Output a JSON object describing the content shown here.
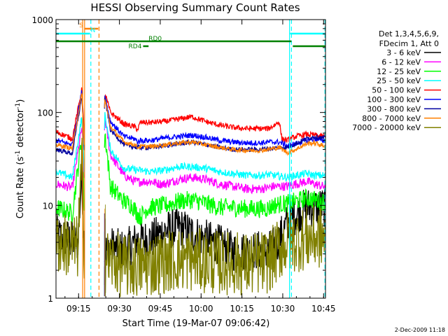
{
  "chart_data": {
    "type": "line",
    "title": "HESSI Observing Summary Count Rates",
    "xlabel": "Start Time (19-Mar-07 09:06:42)",
    "ylabel_main": "Count Rate (s",
    "ylabel_sup": "-1",
    "ylabel_mid": " detector",
    "ylabel_sup2": "-1",
    "ylabel_end": ")",
    "y_scale": "log",
    "xlim_minutes": [
      0,
      99
    ],
    "ylim": [
      1,
      1000
    ],
    "x_ticks": [
      {
        "t": 8.3,
        "label": "09:15"
      },
      {
        "t": 23.3,
        "label": "09:30"
      },
      {
        "t": 38.3,
        "label": "09:45"
      },
      {
        "t": 53.3,
        "label": "10:00"
      },
      {
        "t": 68.3,
        "label": "10:15"
      },
      {
        "t": 83.3,
        "label": "10:30"
      },
      {
        "t": 98.3,
        "label": "10:45"
      }
    ],
    "y_ticks": [
      {
        "v": 1,
        "label": "1"
      },
      {
        "v": 10,
        "label": "10"
      },
      {
        "v": 100,
        "label": "100"
      },
      {
        "v": 1000,
        "label": "1000"
      }
    ],
    "legend_header": [
      "Det 1,3,4,5,6,9,",
      "FDecim 1, Att 0"
    ],
    "legend_position": "right",
    "series": [
      {
        "name": "3 - 6 keV",
        "color": "#000000",
        "base": [
          [
            0,
            4.8
          ],
          [
            8,
            4.0
          ],
          [
            9.5,
            22
          ],
          [
            10.5,
            2.5
          ],
          [
            15,
            2.5
          ],
          [
            17,
            2.5
          ],
          [
            18,
            3.2
          ],
          [
            20,
            3.6
          ],
          [
            25,
            3.3
          ],
          [
            30,
            4.2
          ],
          [
            35,
            4.3
          ],
          [
            40,
            5.3
          ],
          [
            45,
            5.8
          ],
          [
            50,
            5.0
          ],
          [
            55,
            4.3
          ],
          [
            60,
            3.8
          ],
          [
            65,
            3.2
          ],
          [
            70,
            3.2
          ],
          [
            75,
            3.3
          ],
          [
            78,
            3.2
          ],
          [
            80,
            3.6
          ],
          [
            82,
            4.3
          ],
          [
            85,
            6.5
          ],
          [
            88,
            8.0
          ],
          [
            92,
            9.5
          ],
          [
            95,
            9.6
          ],
          [
            98,
            9.6
          ]
        ],
        "noise": 0.22
      },
      {
        "name": "6 - 12 keV",
        "color": "#ff00ff",
        "base": [
          [
            0,
            17
          ],
          [
            6,
            15.5
          ],
          [
            9.5,
            70
          ],
          [
            10.5,
            15
          ],
          [
            15,
            15
          ],
          [
            17,
            15
          ],
          [
            18,
            85
          ],
          [
            20,
            35
          ],
          [
            25,
            21
          ],
          [
            29,
            18
          ],
          [
            31,
            18
          ],
          [
            35,
            18
          ],
          [
            38,
            17
          ],
          [
            40,
            17
          ],
          [
            45,
            19
          ],
          [
            50,
            20
          ],
          [
            55,
            19
          ],
          [
            60,
            17
          ],
          [
            65,
            16
          ],
          [
            70,
            15
          ],
          [
            75,
            15
          ],
          [
            78,
            15.5
          ],
          [
            80,
            16
          ],
          [
            82,
            16
          ],
          [
            85,
            16
          ],
          [
            88,
            17
          ],
          [
            92,
            18
          ],
          [
            95,
            17
          ],
          [
            98,
            16
          ]
        ],
        "noise": 0.05
      },
      {
        "name": "12 - 25 keV",
        "color": "#00ff00",
        "base": [
          [
            0,
            9.5
          ],
          [
            6,
            8.2
          ],
          [
            9.5,
            55
          ],
          [
            10.5,
            8
          ],
          [
            15,
            8
          ],
          [
            17,
            8
          ],
          [
            18,
            60
          ],
          [
            20,
            16
          ],
          [
            25,
            11
          ],
          [
            28,
            10
          ],
          [
            30,
            8
          ],
          [
            31,
            7.5
          ],
          [
            33,
            9
          ],
          [
            35,
            9.5
          ],
          [
            40,
            10
          ],
          [
            45,
            11
          ],
          [
            50,
            11.5
          ],
          [
            55,
            10.5
          ],
          [
            60,
            9.5
          ],
          [
            65,
            9.5
          ],
          [
            70,
            9.2
          ],
          [
            75,
            9.2
          ],
          [
            78,
            9.3
          ],
          [
            80,
            10
          ],
          [
            82,
            10.3
          ],
          [
            85,
            10.5
          ],
          [
            88,
            11
          ],
          [
            92,
            12
          ],
          [
            95,
            11.5
          ],
          [
            98,
            11
          ]
        ],
        "noise": 0.1
      },
      {
        "name": "25 - 50 keV",
        "color": "#00ffff",
        "base": [
          [
            0,
            23
          ],
          [
            6,
            20
          ],
          [
            9.5,
            90
          ],
          [
            10.5,
            20
          ],
          [
            15,
            20
          ],
          [
            17,
            20
          ],
          [
            18,
            95
          ],
          [
            20,
            40
          ],
          [
            25,
            25
          ],
          [
            30,
            24
          ],
          [
            35,
            23
          ],
          [
            40,
            24
          ],
          [
            45,
            26
          ],
          [
            50,
            26
          ],
          [
            55,
            25
          ],
          [
            60,
            23
          ],
          [
            65,
            22
          ],
          [
            70,
            21
          ],
          [
            75,
            21
          ],
          [
            78,
            21.5
          ],
          [
            80,
            21
          ],
          [
            85,
            20
          ],
          [
            88,
            21
          ],
          [
            92,
            22
          ],
          [
            95,
            21
          ],
          [
            98,
            21
          ]
        ],
        "noise": 0.04
      },
      {
        "name": "50 - 100 keV",
        "color": "#ff0000",
        "base": [
          [
            0,
            62
          ],
          [
            6,
            52
          ],
          [
            9.5,
            180
          ],
          [
            10.5,
            50
          ],
          [
            15,
            50
          ],
          [
            17,
            50
          ],
          [
            18,
            160
          ],
          [
            20,
            100
          ],
          [
            25,
            75
          ],
          [
            29,
            70
          ],
          [
            30,
            65
          ],
          [
            31,
            78
          ],
          [
            35,
            78
          ],
          [
            40,
            80
          ],
          [
            45,
            85
          ],
          [
            50,
            90
          ],
          [
            55,
            80
          ],
          [
            60,
            73
          ],
          [
            65,
            69
          ],
          [
            70,
            67
          ],
          [
            75,
            67
          ],
          [
            78,
            67
          ],
          [
            80,
            72
          ],
          [
            82,
            80
          ],
          [
            83,
            52
          ],
          [
            85,
            50
          ],
          [
            88,
            55
          ],
          [
            92,
            58
          ],
          [
            95,
            57
          ],
          [
            98,
            55
          ]
        ],
        "noise": 0.03
      },
      {
        "name": "100 - 300 keV",
        "color": "#0000ff",
        "base": [
          [
            0,
            50
          ],
          [
            6,
            45
          ],
          [
            9.5,
            170
          ],
          [
            10.5,
            42
          ],
          [
            15,
            42
          ],
          [
            17,
            42
          ],
          [
            18,
            150
          ],
          [
            20,
            80
          ],
          [
            25,
            55
          ],
          [
            29,
            52
          ],
          [
            30,
            48
          ],
          [
            31,
            50
          ],
          [
            35,
            50
          ],
          [
            40,
            53
          ],
          [
            45,
            55
          ],
          [
            50,
            57
          ],
          [
            55,
            54
          ],
          [
            60,
            50
          ],
          [
            65,
            48
          ],
          [
            70,
            47
          ],
          [
            75,
            47
          ],
          [
            78,
            48
          ],
          [
            80,
            48
          ],
          [
            82,
            48
          ],
          [
            85,
            44
          ],
          [
            88,
            46
          ],
          [
            92,
            50
          ],
          [
            95,
            52
          ],
          [
            98,
            50
          ]
        ],
        "noise": 0.03
      },
      {
        "name": "300 - 800 keV",
        "color": "#0000a0",
        "base": [
          [
            0,
            40
          ],
          [
            6,
            36
          ],
          [
            9.5,
            150
          ],
          [
            10.5,
            35
          ],
          [
            15,
            35
          ],
          [
            17,
            35
          ],
          [
            18,
            140
          ],
          [
            20,
            65
          ],
          [
            25,
            45
          ],
          [
            30,
            42
          ],
          [
            35,
            42
          ],
          [
            40,
            44
          ],
          [
            45,
            46
          ],
          [
            50,
            48
          ],
          [
            55,
            45
          ],
          [
            60,
            42
          ],
          [
            65,
            40
          ],
          [
            70,
            40
          ],
          [
            75,
            40
          ],
          [
            78,
            41
          ],
          [
            80,
            41
          ],
          [
            82,
            42
          ],
          [
            85,
            42
          ],
          [
            88,
            46
          ],
          [
            92,
            52
          ],
          [
            95,
            55
          ],
          [
            98,
            53
          ]
        ],
        "noise": 0.025
      },
      {
        "name": "800 - 7000 keV",
        "color": "#ff8000",
        "base": [
          [
            0,
            45
          ],
          [
            6,
            41
          ],
          [
            9.5,
            160
          ],
          [
            10.5,
            38
          ],
          [
            15,
            38
          ],
          [
            17,
            38
          ],
          [
            18,
            140
          ],
          [
            20,
            70
          ],
          [
            25,
            48
          ],
          [
            29,
            45
          ],
          [
            30,
            42
          ],
          [
            31,
            43
          ],
          [
            35,
            43
          ],
          [
            40,
            45
          ],
          [
            45,
            47
          ],
          [
            50,
            48
          ],
          [
            55,
            45
          ],
          [
            60,
            42
          ],
          [
            65,
            40
          ],
          [
            70,
            39
          ],
          [
            75,
            39
          ],
          [
            78,
            40
          ],
          [
            80,
            41
          ],
          [
            82,
            42
          ],
          [
            85,
            37
          ],
          [
            88,
            40
          ],
          [
            92,
            46
          ],
          [
            95,
            47
          ],
          [
            98,
            44
          ]
        ],
        "noise": 0.025
      },
      {
        "name": "7000 - 20000 keV",
        "color": "#808000",
        "base": [
          [
            0,
            4.0
          ],
          [
            8,
            3.5
          ],
          [
            9.5,
            30
          ],
          [
            10.5,
            2.5
          ],
          [
            15,
            2.5
          ],
          [
            17,
            2.5
          ],
          [
            18,
            2.5
          ],
          [
            20,
            2.5
          ],
          [
            25,
            2.2
          ],
          [
            30,
            2.2
          ],
          [
            35,
            2.3
          ],
          [
            40,
            2.5
          ],
          [
            45,
            2.6
          ],
          [
            50,
            2.6
          ],
          [
            55,
            2.5
          ],
          [
            60,
            2.4
          ],
          [
            65,
            2.4
          ],
          [
            70,
            2.3
          ],
          [
            75,
            2.4
          ],
          [
            78,
            2.5
          ],
          [
            80,
            2.8
          ],
          [
            82,
            3.4
          ],
          [
            85,
            4.0
          ],
          [
            90,
            4.3
          ],
          [
            95,
            4.5
          ],
          [
            98,
            4.5
          ]
        ],
        "noise": 0.35
      }
    ],
    "overlay_colors": [
      "#000000",
      "#ff00ff",
      "#00ff00",
      "#00ffff",
      "#ff0000",
      "#0000ff",
      "#0000a0",
      "#ff8000",
      "#808000"
    ],
    "gaps_minutes": [
      [
        10.5,
        17.8
      ]
    ],
    "segments": [
      {
        "label": "S",
        "color": "#ff8000",
        "t0": 10.5,
        "t1": 15.5,
        "row": 1
      },
      {
        "label": "N",
        "color": "#00ffff",
        "t0": 0,
        "t1": 12.5,
        "row": 2
      },
      {
        "label": "",
        "color": "#00ffff",
        "t0": 86,
        "t1": 99,
        "row": 2
      },
      {
        "label": "RD0",
        "color": "#008000",
        "t0": 0,
        "t1": 86.5,
        "row": 3
      },
      {
        "label": "",
        "color": "#008000",
        "t0": 87,
        "t1": 99,
        "row": 4
      },
      {
        "label": "RD4",
        "color": "#008000",
        "t0": 32,
        "t1": 34,
        "row": 4
      }
    ],
    "vlines": [
      {
        "t": 9.8,
        "color": "#ff8000",
        "dash": false
      },
      {
        "t": 10.5,
        "color": "#ff8000",
        "dash": false
      },
      {
        "t": 12.8,
        "color": "#00ffff",
        "dash": true
      },
      {
        "t": 15.8,
        "color": "#ff8000",
        "dash": true
      },
      {
        "t": 85.8,
        "color": "#00ffff",
        "dash": false
      },
      {
        "t": 86.5,
        "color": "#00ffff",
        "dash": true
      },
      {
        "t": 98.8,
        "color": "#00ffff",
        "dash": true
      }
    ],
    "footer": "2-Dec-2009 11:18"
  }
}
